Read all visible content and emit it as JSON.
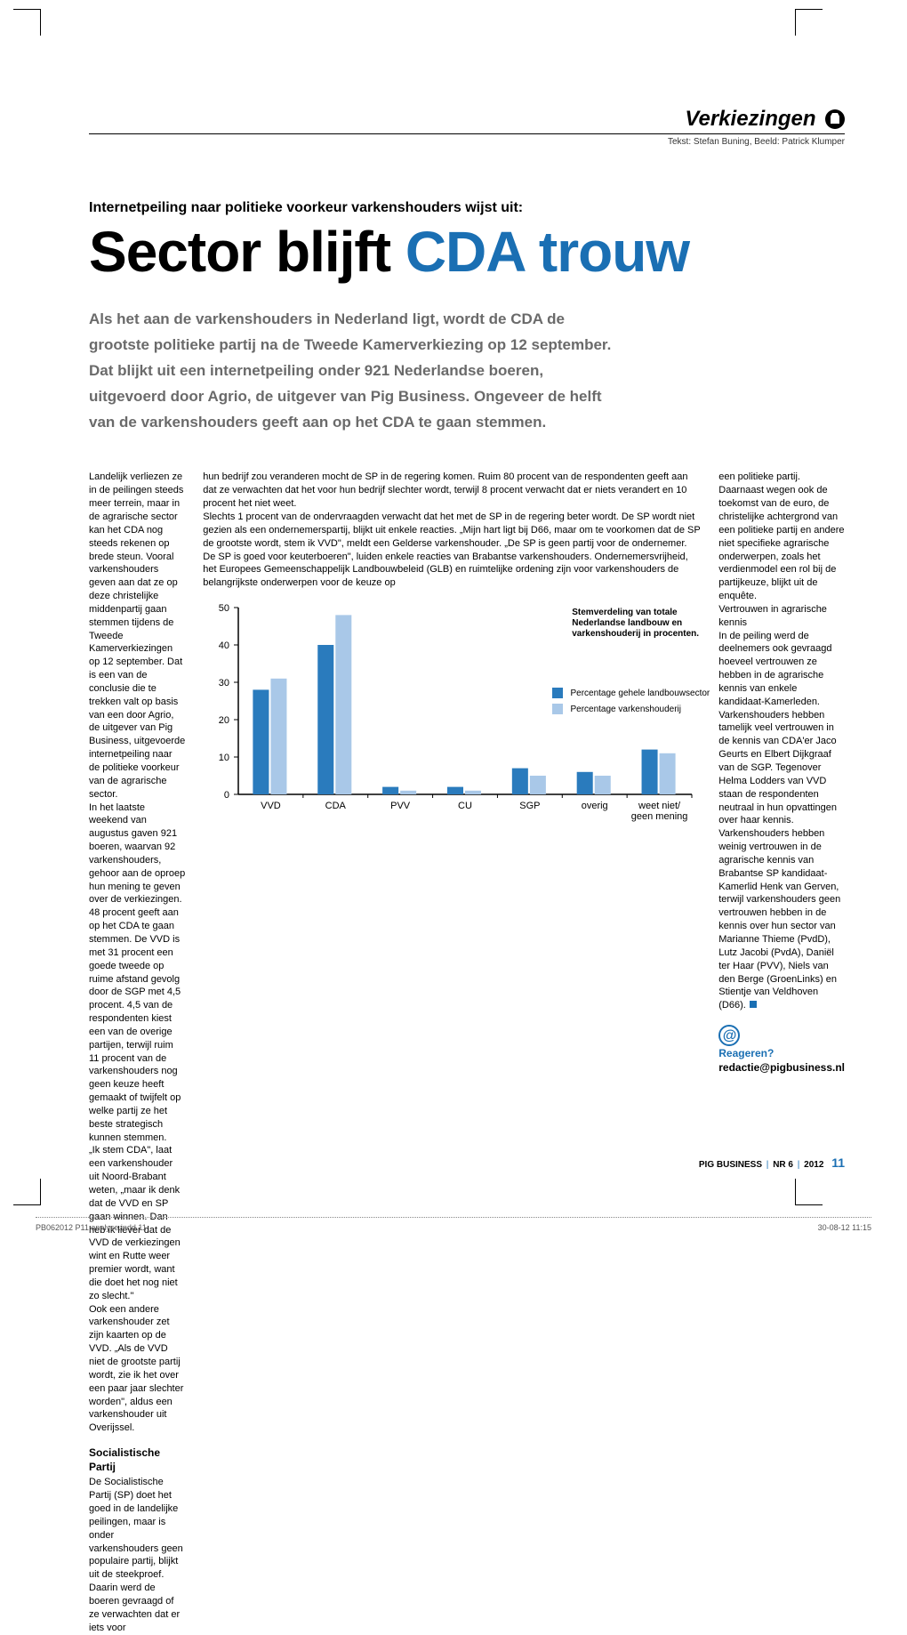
{
  "section": {
    "title": "Verkiezingen",
    "credit": "Tekst: Stefan Buning, Beeld: Patrick Klumper"
  },
  "article": {
    "kicker": "Internetpeiling naar politieke voorkeur varkenshouders wijst uit:",
    "headline_part1": "Sector blijft ",
    "headline_part2": "CDA trouw",
    "standfirst": "Als het aan de varkenshouders in Nederland ligt, wordt de CDA de grootste politieke partij na de Tweede Kamerverkiezing op 12 september. Dat blijkt uit een internetpeiling onder 921 Nederlandse boeren, uitgevoerd door Agrio, de uitgever van Pig Business. Ongeveer de helft van de varkenshouders geeft aan op het CDA te gaan stemmen."
  },
  "body": {
    "col1a": "Landelijk verliezen ze in de peilingen steeds meer terrein, maar in de agrarische sector kan het CDA nog steeds rekenen op brede steun. Vooral varkenshouders geven aan dat ze op deze christelijke middenpartij gaan stemmen tijdens de Tweede Kamerverkiezingen op 12 september. Dat is een van de conclusie die te trekken valt op basis van een door Agrio, de uitgever van Pig Business, uitgevoerde internetpeiling naar de politieke voorkeur van de agrarische sector.",
    "col1b": "In het laatste weekend van augustus gaven 921 boeren, waarvan 92 varkenshouders, gehoor aan de oproep hun mening te geven over de verkiezingen. 48 procent geeft aan op het CDA te gaan stemmen. De VVD is met 31 procent een goede tweede op ruime afstand gevolg door de SGP met 4,5 procent. 4,5 van de respondenten kiest een van de overige partijen, terwijl ruim 11 procent van de varkenshouders nog geen keuze heeft gemaakt of twijfelt op welke partij ze het beste strategisch kunnen stemmen.",
    "col1c": "„Ik stem CDA\", laat een varkenshouder uit Noord-Brabant weten, „maar ik denk dat de VVD en SP gaan winnen. Dan heb ik liever dat de VVD de verkiezingen wint en Rutte weer premier wordt, want die doet het nog niet zo slecht.\"",
    "col1d": "Ook een andere varkenshouder zet zijn kaarten op de VVD. „Als de VVD niet de grootste partij wordt, zie ik het over een paar jaar slechter worden\", aldus een varkenshouder uit Overijssel.",
    "subhead1": "Socialistische Partij",
    "col1e": "De Socialistische Partij (SP) doet het goed in de landelijke peilingen, maar is onder varkenshouders geen populaire partij, blijkt uit de steekproef. Daarin werd de boeren gevraagd of ze verwachten dat er iets voor",
    "col2a": "hun bedrijf zou veranderen mocht de SP in de regering komen. Ruim 80 procent van de respondenten geeft aan dat ze verwachten dat het voor hun bedrijf slechter wordt, terwijl 8 procent verwacht dat er niets verandert en 10 procent het niet weet.",
    "col2b": "Slechts 1 procent van de ondervraagden verwacht dat het met de SP in de regering beter wordt. De SP wordt niet gezien als een ondernemerspartij, blijkt uit enkele reacties. „Mijn hart ligt bij D66, maar om te voorkomen dat de SP de grootste wordt, stem ik VVD\", meldt een Gelderse varkenshouder. „De SP is geen partij voor de ondernemer. De SP is goed voor keuterboeren\", luiden enkele reacties van Brabantse varkenshouders. Ondernemersvrijheid, het Europees Gemeenschappelijk Landbouwbeleid (GLB) en ruimtelijke ordening zijn voor varkenshouders de belangrijkste onderwerpen voor de keuze op",
    "col3a": "een politieke partij. Daarnaast wegen ook de toekomst van de euro, de christelijke achtergrond van een politieke partij en andere niet specifieke agrarische onderwerpen, zoals het verdienmodel een rol bij de partijkeuze, blijkt uit de enquête.",
    "subhead2": "Vertrouwen in agrarische kennis",
    "col3b": "In de peiling werd de deelnemers ook gevraagd hoeveel vertrouwen ze hebben in de agrarische kennis van enkele kandidaat-Kamerleden. Varkenshouders hebben tamelijk veel vertrouwen in de kennis van CDA'er Jaco Geurts en Elbert Dijkgraaf van de SGP. Tegenover Helma Lodders van VVD staan de respondenten neutraal in hun opvattingen over haar kennis. Varkenshouders hebben weinig vertrouwen in de agrarische kennis van Brabantse SP kandidaat-Kamerlid Henk van Gerven, terwijl varkenshouders geen vertrouwen hebben in de kennis over hun sector van Marianne Thieme (PvdD), Lutz Jacobi (PvdA), Daniël ter Haar (PVV), Niels van den Berge (GroenLinks) en Stientje van Veldhoven (D66)."
  },
  "react": {
    "question": "Reageren?",
    "email": "redactie@pigbusiness.nl"
  },
  "chart": {
    "type": "bar-grouped",
    "caption": "Stemverdeling van totale Nederlandse landbouw en varkenshouderij in procenten.",
    "categories": [
      "VVD",
      "CDA",
      "PVV",
      "CU",
      "SGP",
      "overig",
      "weet niet/\ngeen mening"
    ],
    "series": [
      {
        "name": "Percentage gehele landbouwsector",
        "color": "#2a7bbd",
        "values": [
          28,
          40,
          2,
          2,
          7,
          6,
          12
        ]
      },
      {
        "name": "Percentage varkenshouderij",
        "color": "#a9c8e8",
        "values": [
          31,
          48,
          1,
          1,
          5,
          5,
          11
        ]
      }
    ],
    "y": {
      "min": 0,
      "max": 50,
      "step": 10
    },
    "bar_group_width": 0.55,
    "axis_color": "#000000",
    "background": "#ffffff",
    "label_fontsize": 11,
    "tick_fontsize": 11
  },
  "footer": {
    "magazine": "PIG BUSINESS",
    "issue": "NR 6",
    "year": "2012",
    "page": "11"
  },
  "slug": {
    "file": "PB062012 P11 analyse.indd   11",
    "timestamp": "30-08-12   11:15"
  },
  "colors": {
    "accent": "#1a6fb3",
    "text_gray": "#6a6a6a"
  }
}
